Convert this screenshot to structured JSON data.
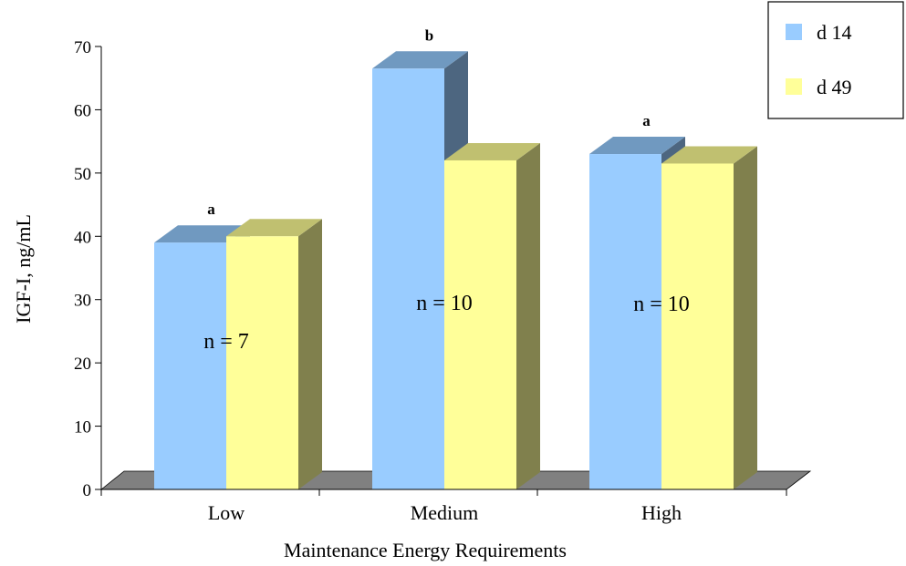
{
  "chart_data": {
    "type": "bar",
    "three_d": true,
    "categories": [
      "Low",
      "Medium",
      "High"
    ],
    "series": [
      {
        "name": "d 14",
        "values": [
          39,
          66.5,
          53
        ],
        "color": "#99ccff",
        "side_color": "#4d6680",
        "top_color": "#7099c0"
      },
      {
        "name": "d 49",
        "values": [
          40,
          52,
          51.5
        ],
        "color": "#ffff99",
        "side_color": "#80804d",
        "top_color": "#c0c070"
      }
    ],
    "significance_letters": [
      "a",
      "b",
      "a"
    ],
    "n_labels": [
      "n = 7",
      "n = 10",
      "n = 10"
    ],
    "xlabel": "Maintenance Energy  Requirements",
    "ylabel": "IGF-I,  ng/mL",
    "ylim": [
      0,
      70
    ],
    "yticks": [
      0,
      10,
      20,
      30,
      40,
      50,
      60,
      70
    ],
    "grid": false,
    "legend_position": "top-right",
    "floor_color": "#808080"
  }
}
